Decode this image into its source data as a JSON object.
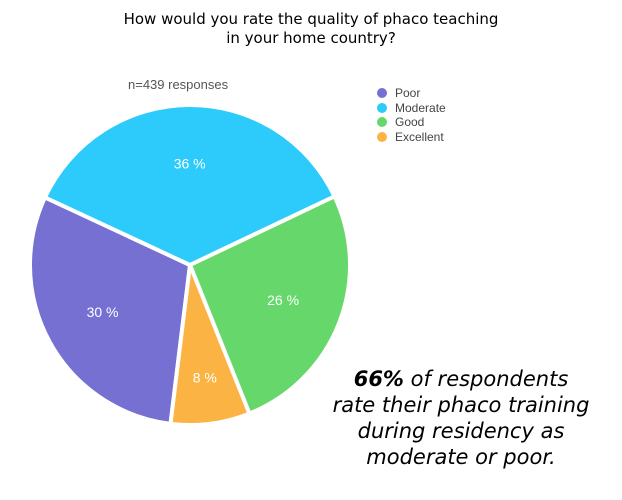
{
  "title_lines": [
    "How would you rate the quality of phaco teaching",
    "in your home country?"
  ],
  "sample_size": "n=439 responses",
  "callout": {
    "emphasis": "66%",
    "line1_rest": " of respondents",
    "line2": "rate their phaco training",
    "line3": "during residency as",
    "line4": "moderate or poor."
  },
  "colors": {
    "Poor": "#7670d2",
    "Moderate": "#2ccbfb",
    "Good": "#66d86b",
    "Excellent": "#fbb444"
  },
  "chart_data": {
    "type": "pie",
    "title": "How would you rate the quality of phaco teaching in your home country?",
    "subtitle": "n=439 responses",
    "categories": [
      "Poor",
      "Moderate",
      "Good",
      "Excellent"
    ],
    "values": [
      30,
      36,
      26,
      8
    ],
    "value_labels": [
      "30 %",
      "36 %",
      "26 %",
      "8 %"
    ],
    "unit": "%",
    "legend_position": "top-right",
    "legend": [
      "Poor",
      "Moderate",
      "Good",
      "Excellent"
    ]
  }
}
